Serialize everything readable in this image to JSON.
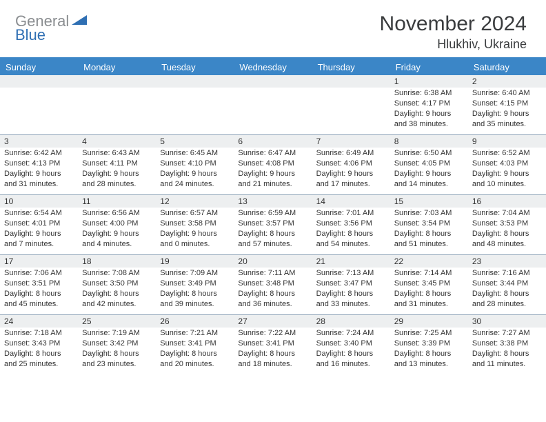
{
  "logo": {
    "gray_text": "General",
    "blue_text": "Blue",
    "triangle_color": "#2f6fb3"
  },
  "title": "November 2024",
  "location": "Hlukhiv, Ukraine",
  "colors": {
    "header_band": "#3b86c7",
    "header_border_top": "#3b86c7",
    "daynum_bg": "#edeff0",
    "week_border": "#8aa0b5",
    "text": "#333333"
  },
  "day_headers": [
    "Sunday",
    "Monday",
    "Tuesday",
    "Wednesday",
    "Thursday",
    "Friday",
    "Saturday"
  ],
  "weeks": [
    [
      {
        "n": "",
        "lines": []
      },
      {
        "n": "",
        "lines": []
      },
      {
        "n": "",
        "lines": []
      },
      {
        "n": "",
        "lines": []
      },
      {
        "n": "",
        "lines": []
      },
      {
        "n": "1",
        "lines": [
          "Sunrise: 6:38 AM",
          "Sunset: 4:17 PM",
          "Daylight: 9 hours",
          "and 38 minutes."
        ]
      },
      {
        "n": "2",
        "lines": [
          "Sunrise: 6:40 AM",
          "Sunset: 4:15 PM",
          "Daylight: 9 hours",
          "and 35 minutes."
        ]
      }
    ],
    [
      {
        "n": "3",
        "lines": [
          "Sunrise: 6:42 AM",
          "Sunset: 4:13 PM",
          "Daylight: 9 hours",
          "and 31 minutes."
        ]
      },
      {
        "n": "4",
        "lines": [
          "Sunrise: 6:43 AM",
          "Sunset: 4:11 PM",
          "Daylight: 9 hours",
          "and 28 minutes."
        ]
      },
      {
        "n": "5",
        "lines": [
          "Sunrise: 6:45 AM",
          "Sunset: 4:10 PM",
          "Daylight: 9 hours",
          "and 24 minutes."
        ]
      },
      {
        "n": "6",
        "lines": [
          "Sunrise: 6:47 AM",
          "Sunset: 4:08 PM",
          "Daylight: 9 hours",
          "and 21 minutes."
        ]
      },
      {
        "n": "7",
        "lines": [
          "Sunrise: 6:49 AM",
          "Sunset: 4:06 PM",
          "Daylight: 9 hours",
          "and 17 minutes."
        ]
      },
      {
        "n": "8",
        "lines": [
          "Sunrise: 6:50 AM",
          "Sunset: 4:05 PM",
          "Daylight: 9 hours",
          "and 14 minutes."
        ]
      },
      {
        "n": "9",
        "lines": [
          "Sunrise: 6:52 AM",
          "Sunset: 4:03 PM",
          "Daylight: 9 hours",
          "and 10 minutes."
        ]
      }
    ],
    [
      {
        "n": "10",
        "lines": [
          "Sunrise: 6:54 AM",
          "Sunset: 4:01 PM",
          "Daylight: 9 hours",
          "and 7 minutes."
        ]
      },
      {
        "n": "11",
        "lines": [
          "Sunrise: 6:56 AM",
          "Sunset: 4:00 PM",
          "Daylight: 9 hours",
          "and 4 minutes."
        ]
      },
      {
        "n": "12",
        "lines": [
          "Sunrise: 6:57 AM",
          "Sunset: 3:58 PM",
          "Daylight: 9 hours",
          "and 0 minutes."
        ]
      },
      {
        "n": "13",
        "lines": [
          "Sunrise: 6:59 AM",
          "Sunset: 3:57 PM",
          "Daylight: 8 hours",
          "and 57 minutes."
        ]
      },
      {
        "n": "14",
        "lines": [
          "Sunrise: 7:01 AM",
          "Sunset: 3:56 PM",
          "Daylight: 8 hours",
          "and 54 minutes."
        ]
      },
      {
        "n": "15",
        "lines": [
          "Sunrise: 7:03 AM",
          "Sunset: 3:54 PM",
          "Daylight: 8 hours",
          "and 51 minutes."
        ]
      },
      {
        "n": "16",
        "lines": [
          "Sunrise: 7:04 AM",
          "Sunset: 3:53 PM",
          "Daylight: 8 hours",
          "and 48 minutes."
        ]
      }
    ],
    [
      {
        "n": "17",
        "lines": [
          "Sunrise: 7:06 AM",
          "Sunset: 3:51 PM",
          "Daylight: 8 hours",
          "and 45 minutes."
        ]
      },
      {
        "n": "18",
        "lines": [
          "Sunrise: 7:08 AM",
          "Sunset: 3:50 PM",
          "Daylight: 8 hours",
          "and 42 minutes."
        ]
      },
      {
        "n": "19",
        "lines": [
          "Sunrise: 7:09 AM",
          "Sunset: 3:49 PM",
          "Daylight: 8 hours",
          "and 39 minutes."
        ]
      },
      {
        "n": "20",
        "lines": [
          "Sunrise: 7:11 AM",
          "Sunset: 3:48 PM",
          "Daylight: 8 hours",
          "and 36 minutes."
        ]
      },
      {
        "n": "21",
        "lines": [
          "Sunrise: 7:13 AM",
          "Sunset: 3:47 PM",
          "Daylight: 8 hours",
          "and 33 minutes."
        ]
      },
      {
        "n": "22",
        "lines": [
          "Sunrise: 7:14 AM",
          "Sunset: 3:45 PM",
          "Daylight: 8 hours",
          "and 31 minutes."
        ]
      },
      {
        "n": "23",
        "lines": [
          "Sunrise: 7:16 AM",
          "Sunset: 3:44 PM",
          "Daylight: 8 hours",
          "and 28 minutes."
        ]
      }
    ],
    [
      {
        "n": "24",
        "lines": [
          "Sunrise: 7:18 AM",
          "Sunset: 3:43 PM",
          "Daylight: 8 hours",
          "and 25 minutes."
        ]
      },
      {
        "n": "25",
        "lines": [
          "Sunrise: 7:19 AM",
          "Sunset: 3:42 PM",
          "Daylight: 8 hours",
          "and 23 minutes."
        ]
      },
      {
        "n": "26",
        "lines": [
          "Sunrise: 7:21 AM",
          "Sunset: 3:41 PM",
          "Daylight: 8 hours",
          "and 20 minutes."
        ]
      },
      {
        "n": "27",
        "lines": [
          "Sunrise: 7:22 AM",
          "Sunset: 3:41 PM",
          "Daylight: 8 hours",
          "and 18 minutes."
        ]
      },
      {
        "n": "28",
        "lines": [
          "Sunrise: 7:24 AM",
          "Sunset: 3:40 PM",
          "Daylight: 8 hours",
          "and 16 minutes."
        ]
      },
      {
        "n": "29",
        "lines": [
          "Sunrise: 7:25 AM",
          "Sunset: 3:39 PM",
          "Daylight: 8 hours",
          "and 13 minutes."
        ]
      },
      {
        "n": "30",
        "lines": [
          "Sunrise: 7:27 AM",
          "Sunset: 3:38 PM",
          "Daylight: 8 hours",
          "and 11 minutes."
        ]
      }
    ]
  ]
}
